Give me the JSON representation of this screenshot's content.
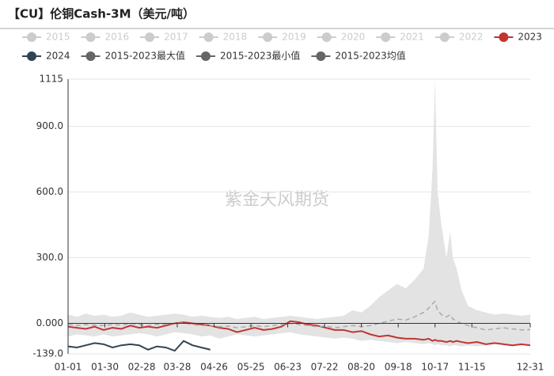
{
  "chart_data": {
    "type": "line",
    "title": "【CU】伦铜Cash-3M（美元/吨）",
    "watermark": "紫金天风期货",
    "x": [
      0,
      7,
      14,
      21,
      28,
      35,
      42,
      49,
      56,
      63,
      70,
      77,
      84,
      91,
      98,
      105,
      112,
      119,
      126,
      133,
      140,
      147,
      154,
      161,
      168,
      175,
      182,
      189,
      196,
      203,
      210,
      217,
      224,
      231,
      238,
      245,
      252,
      259,
      266,
      273,
      280,
      284,
      287,
      289,
      291,
      294,
      298,
      301,
      303,
      306,
      310,
      315,
      322,
      329,
      336,
      343,
      350,
      357,
      364
    ],
    "xlim": [
      0,
      364
    ],
    "xticks": [
      {
        "value": 0,
        "label": "01-01"
      },
      {
        "value": 29,
        "label": "01-30"
      },
      {
        "value": 58,
        "label": "02-28"
      },
      {
        "value": 86,
        "label": "03-28"
      },
      {
        "value": 115,
        "label": "04-26"
      },
      {
        "value": 144,
        "label": "05-25"
      },
      {
        "value": 173,
        "label": "06-23"
      },
      {
        "value": 202,
        "label": "07-22"
      },
      {
        "value": 231,
        "label": "08-20"
      },
      {
        "value": 260,
        "label": "09-18"
      },
      {
        "value": 289,
        "label": "10-17"
      },
      {
        "value": 318,
        "label": "11-15"
      },
      {
        "value": 364,
        "label": "12-31"
      }
    ],
    "ylim": [
      -139,
      1115
    ],
    "yticks": [
      {
        "value": -139,
        "label": "-139.0"
      },
      {
        "value": 0,
        "label": "0.000"
      },
      {
        "value": 300,
        "label": "300.0"
      },
      {
        "value": 600,
        "label": "600.0"
      },
      {
        "value": 900,
        "label": "900.0"
      },
      1115
    ],
    "grid": true,
    "series": [
      {
        "name": "2015",
        "color": "#ccc",
        "visible": false
      },
      {
        "name": "2016",
        "color": "#ccc",
        "visible": false
      },
      {
        "name": "2017",
        "color": "#ccc",
        "visible": false
      },
      {
        "name": "2018",
        "color": "#ccc",
        "visible": false
      },
      {
        "name": "2019",
        "color": "#ccc",
        "visible": false
      },
      {
        "name": "2020",
        "color": "#ccc",
        "visible": false
      },
      {
        "name": "2021",
        "color": "#ccc",
        "visible": false
      },
      {
        "name": "2022",
        "color": "#ccc",
        "visible": false
      },
      {
        "name": "2023",
        "color": "#c23531",
        "visible": true,
        "values": [
          -15,
          -20,
          -25,
          -15,
          -30,
          -20,
          -25,
          -10,
          -20,
          -15,
          -20,
          -10,
          0,
          5,
          0,
          -5,
          -10,
          -20,
          -25,
          -40,
          -30,
          -20,
          -30,
          -25,
          -15,
          10,
          5,
          -5,
          -10,
          -20,
          -30,
          -30,
          -40,
          -35,
          -50,
          -60,
          -55,
          -65,
          -70,
          -70,
          -75,
          -70,
          -80,
          -75,
          -80,
          -80,
          -85,
          -80,
          -85,
          -80,
          -85,
          -90,
          -85,
          -95,
          -90,
          -95,
          -100,
          -95,
          -100
        ]
      },
      {
        "name": "2024",
        "color": "#2f4554",
        "visible": true,
        "values": [
          -105,
          -110,
          -100,
          -90,
          -95,
          -110,
          -100,
          -95,
          -100,
          -120,
          -105,
          -110,
          -125,
          -80,
          -100,
          -110,
          -120,
          null,
          null,
          null,
          null,
          null,
          null,
          null,
          null,
          null,
          null,
          null,
          null,
          null,
          null,
          null,
          null,
          null,
          null,
          null,
          null,
          null,
          null,
          null,
          null,
          null,
          null,
          null,
          null,
          null,
          null,
          null,
          null,
          null,
          null,
          null,
          null,
          null,
          null,
          null,
          null,
          null,
          null
        ]
      },
      {
        "name": "2015-2023最大值",
        "color": "#666",
        "visible": true,
        "area_color": "#e3e3e3",
        "values": [
          40,
          30,
          45,
          35,
          40,
          30,
          35,
          50,
          40,
          30,
          35,
          40,
          45,
          40,
          30,
          35,
          30,
          25,
          30,
          20,
          25,
          30,
          20,
          25,
          30,
          35,
          30,
          25,
          20,
          25,
          30,
          35,
          60,
          50,
          80,
          120,
          150,
          180,
          160,
          200,
          250,
          400,
          700,
          1115,
          600,
          450,
          300,
          420,
          300,
          250,
          150,
          80,
          60,
          50,
          40,
          45,
          40,
          35,
          40
        ]
      },
      {
        "name": "2015-2023最小值",
        "color": "#666",
        "visible": true,
        "area_color": "#e3e3e3",
        "values": [
          -60,
          -50,
          -55,
          -60,
          -50,
          -60,
          -55,
          -50,
          -45,
          -50,
          -60,
          -50,
          -40,
          -45,
          -50,
          -60,
          -55,
          -70,
          -60,
          -50,
          -55,
          -60,
          -55,
          -50,
          -45,
          -40,
          -50,
          -55,
          -60,
          -65,
          -70,
          -65,
          -70,
          -80,
          -75,
          -80,
          -85,
          -90,
          -85,
          -90,
          -95,
          -90,
          -95,
          -100,
          -95,
          -100,
          -100,
          -105,
          -100,
          -100,
          -105,
          -100,
          -105,
          -100,
          -95,
          -100,
          -105,
          -100,
          -95
        ]
      },
      {
        "name": "2015-2023均值",
        "color": "#666",
        "visible": true,
        "line_color": "#aaa",
        "dash": true,
        "values": [
          -5,
          -10,
          -5,
          -8,
          -10,
          -5,
          -8,
          0,
          -5,
          -10,
          -5,
          -3,
          0,
          2,
          -5,
          -10,
          -10,
          -15,
          -12,
          -20,
          -15,
          -10,
          -15,
          -10,
          -5,
          0,
          -5,
          -10,
          -15,
          -12,
          -20,
          -15,
          -10,
          -15,
          -10,
          0,
          10,
          20,
          15,
          30,
          50,
          70,
          90,
          100,
          60,
          40,
          30,
          40,
          20,
          10,
          0,
          -10,
          -20,
          -30,
          -25,
          -20,
          -25,
          -30,
          -28
        ]
      }
    ]
  }
}
